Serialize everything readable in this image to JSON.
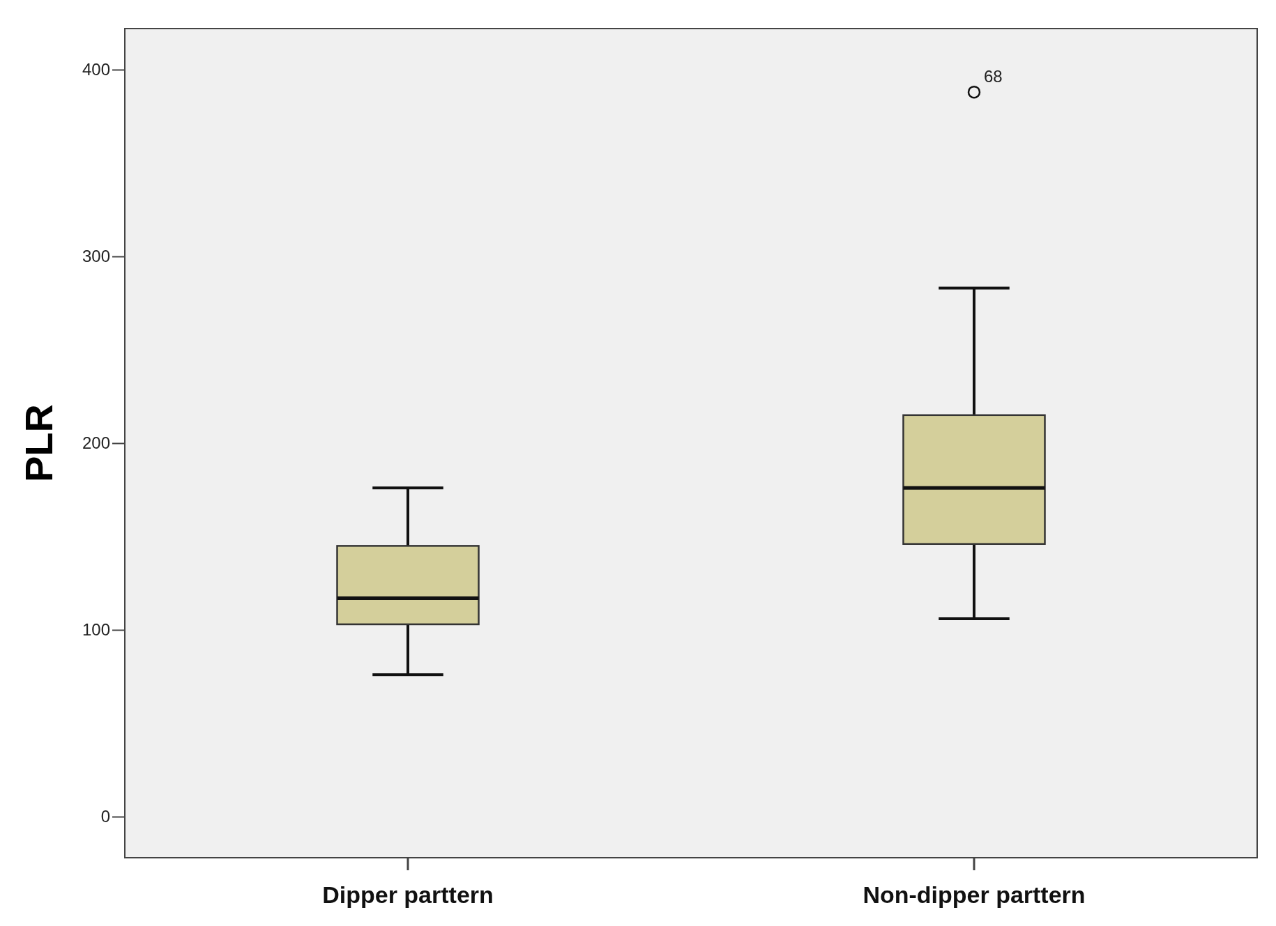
{
  "chart_data": {
    "type": "box",
    "ylabel": "PLR",
    "categories": [
      "Dipper parttern",
      "Non-dipper parttern"
    ],
    "boxes": [
      {
        "low": 76,
        "q1": 103,
        "median": 117,
        "q3": 145,
        "high": 176
      },
      {
        "low": 106,
        "q1": 146,
        "median": 176,
        "q3": 215,
        "high": 283,
        "outliers": [
          388
        ]
      }
    ],
    "color": "#d4cf9b",
    "ylim": [
      -22,
      422
    ],
    "yticks": [
      0,
      100,
      200,
      300,
      400
    ],
    "grid": false,
    "annotations": [
      "68"
    ]
  }
}
